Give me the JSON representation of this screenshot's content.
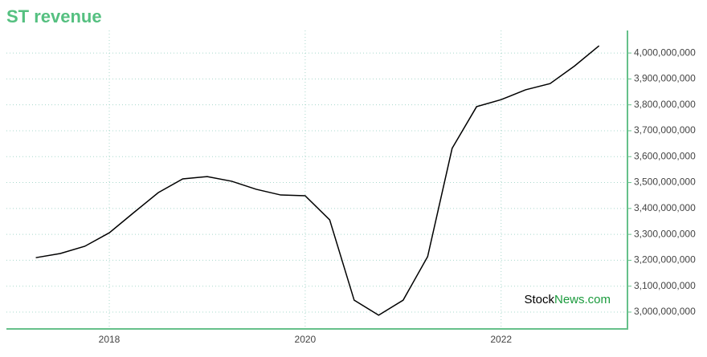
{
  "chart_data": {
    "type": "line",
    "title": "ST revenue",
    "watermark": [
      "Stock",
      "News.com"
    ],
    "x": [
      2017.25,
      2017.5,
      2017.75,
      2018.0,
      2018.25,
      2018.5,
      2018.75,
      2019.0,
      2019.25,
      2019.5,
      2019.75,
      2020.0,
      2020.25,
      2020.5,
      2020.75,
      2021.0,
      2021.25,
      2021.5,
      2021.75,
      2022.0,
      2022.25,
      2022.5,
      2022.75,
      2023.0
    ],
    "series": [
      {
        "name": "ST revenue",
        "color": "#000000",
        "values": [
          3210000000,
          3226000000,
          3254000000,
          3306000000,
          3384000000,
          3461000000,
          3514000000,
          3523000000,
          3505000000,
          3474000000,
          3452000000,
          3449000000,
          3356000000,
          3046000000,
          2988000000,
          3046000000,
          3214000000,
          3632000000,
          3793000000,
          3820000000,
          3858000000,
          3882000000,
          3950000000,
          4028000000
        ]
      }
    ],
    "xlim": [
      2016.95,
      2023.29
    ],
    "xticks": [
      2018,
      2020,
      2022
    ],
    "ylim": [
      2935000000,
      4087000000
    ],
    "yticks": [
      {
        "value": 3000000000,
        "label": "3,000,000,000"
      },
      {
        "value": 3100000000,
        "label": "3,100,000,000"
      },
      {
        "value": 3200000000,
        "label": "3,200,000,000"
      },
      {
        "value": 3300000000,
        "label": "3,300,000,000"
      },
      {
        "value": 3400000000,
        "label": "3,400,000,000"
      },
      {
        "value": 3500000000,
        "label": "3,500,000,000"
      },
      {
        "value": 3600000000,
        "label": "3,600,000,000"
      },
      {
        "value": 3700000000,
        "label": "3,700,000,000"
      },
      {
        "value": 3800000000,
        "label": "3,800,000,000"
      },
      {
        "value": 3900000000,
        "label": "3,900,000,000"
      },
      {
        "value": 4000000000,
        "label": "4,000,000,000"
      }
    ],
    "grid": true
  }
}
